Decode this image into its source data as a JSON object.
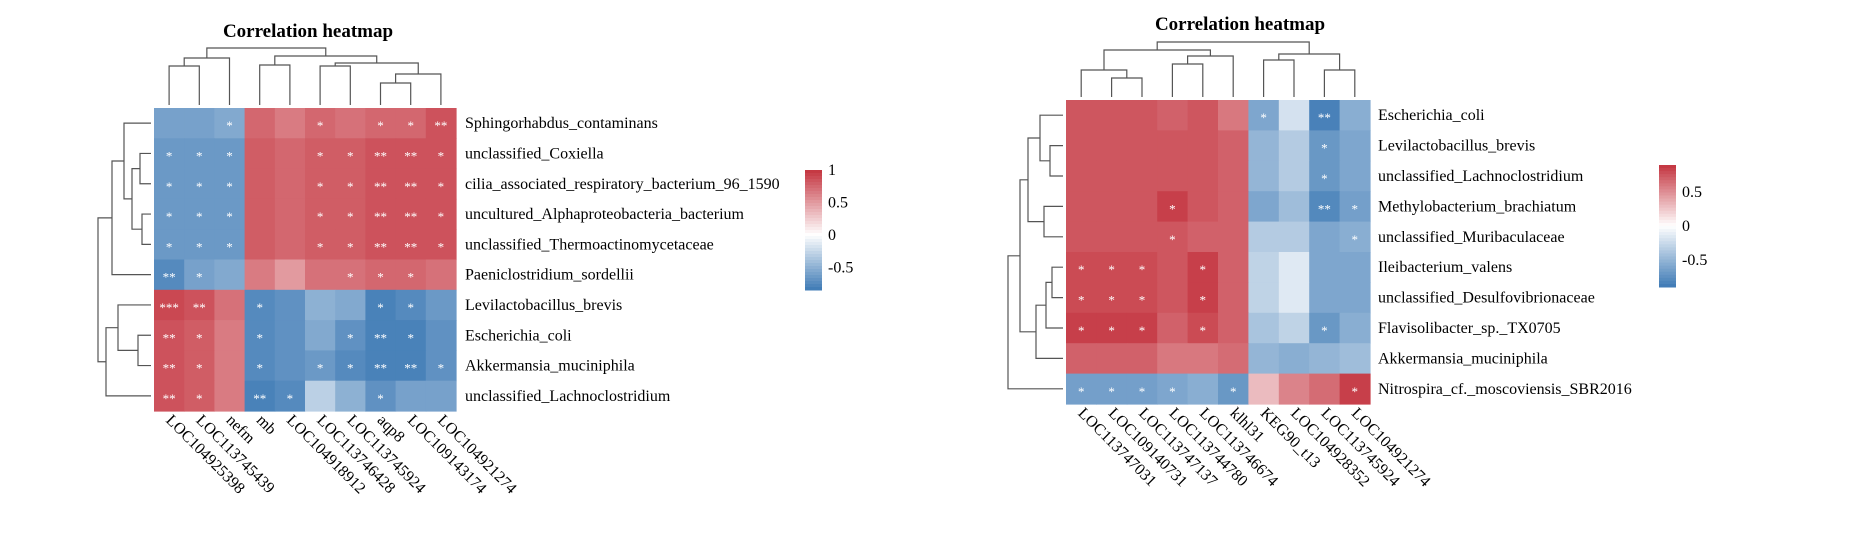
{
  "colors": {
    "neg": "#3e7ab5",
    "mid": "#ffffff",
    "pos": "#c4343f"
  },
  "chart_data": [
    {
      "type": "heatmap",
      "title": "Correlation heatmap",
      "rows": [
        "Sphingorhabdus_contaminans",
        "unclassified_Coxiella",
        "cilia_associated_respiratory_bacterium_96_1590",
        "uncultured_Alphaproteobacteria_bacterium",
        "unclassified_Thermoactinomycetaceae",
        "Paeniclostridium_sordellii",
        "Levilactobacillus_brevis",
        "Escherichia_coli",
        "Akkermansia_muciniphila",
        "unclassified_Lachnoclostridium"
      ],
      "columns": [
        "LOC104925398",
        "LOC113745439",
        "nefm",
        "mb",
        "LOC104918912",
        "LOC113746428",
        "LOC113745924",
        "aqp8",
        "LOC109143174",
        "LOC104921274"
      ],
      "values": [
        [
          -0.6,
          -0.6,
          -0.55,
          0.75,
          0.65,
          0.75,
          0.7,
          0.75,
          0.75,
          0.85
        ],
        [
          -0.65,
          -0.65,
          -0.65,
          0.8,
          0.75,
          0.8,
          0.8,
          0.85,
          0.85,
          0.85
        ],
        [
          -0.65,
          -0.65,
          -0.65,
          0.8,
          0.75,
          0.8,
          0.8,
          0.85,
          0.85,
          0.85
        ],
        [
          -0.65,
          -0.65,
          -0.65,
          0.8,
          0.75,
          0.8,
          0.8,
          0.85,
          0.85,
          0.85
        ],
        [
          -0.65,
          -0.65,
          -0.65,
          0.8,
          0.75,
          0.8,
          0.8,
          0.85,
          0.85,
          0.85
        ],
        [
          -0.75,
          -0.6,
          -0.55,
          0.65,
          0.5,
          0.7,
          0.7,
          0.75,
          0.75,
          0.7
        ],
        [
          0.9,
          0.85,
          0.7,
          -0.75,
          -0.7,
          -0.5,
          -0.55,
          -0.8,
          -0.75,
          -0.65
        ],
        [
          0.85,
          0.8,
          0.65,
          -0.75,
          -0.7,
          -0.55,
          -0.7,
          -0.8,
          -0.8,
          -0.7
        ],
        [
          0.85,
          0.8,
          0.65,
          -0.75,
          -0.7,
          -0.65,
          -0.75,
          -0.8,
          -0.8,
          -0.7
        ],
        [
          0.85,
          0.8,
          0.65,
          -0.8,
          -0.75,
          -0.3,
          -0.5,
          -0.7,
          -0.6,
          -0.6
        ]
      ],
      "stars": [
        [
          "",
          "",
          "*",
          "",
          "",
          "*",
          "",
          "*",
          "*",
          "**"
        ],
        [
          "*",
          "*",
          "*",
          "",
          "",
          "*",
          "*",
          "**",
          "**",
          "*"
        ],
        [
          "*",
          "*",
          "*",
          "",
          "",
          "*",
          "*",
          "**",
          "**",
          "*"
        ],
        [
          "*",
          "*",
          "*",
          "",
          "",
          "*",
          "*",
          "**",
          "**",
          "*"
        ],
        [
          "*",
          "*",
          "*",
          "",
          "",
          "*",
          "*",
          "**",
          "**",
          "*"
        ],
        [
          "**",
          "*",
          "",
          "",
          "",
          "",
          "*",
          "*",
          "*",
          ""
        ],
        [
          "***",
          "**",
          "",
          "*",
          "",
          "",
          "",
          "*",
          "*",
          ""
        ],
        [
          "**",
          "*",
          "",
          "*",
          "",
          "",
          "*",
          "**",
          "*",
          ""
        ],
        [
          "**",
          "*",
          "",
          "*",
          "",
          "*",
          "*",
          "**",
          "**",
          "*"
        ],
        [
          "**",
          "*",
          "",
          "**",
          "*",
          "",
          "",
          "*",
          "",
          ""
        ]
      ],
      "legend": {
        "ticks": [
          "1",
          "0.5",
          "0",
          "-0.5"
        ],
        "tick_values": [
          1,
          0.5,
          0,
          -0.5
        ],
        "range": [
          -0.85,
          1
        ]
      }
    },
    {
      "type": "heatmap",
      "title": "Correlation heatmap",
      "rows": [
        "Escherichia_coli",
        "Levilactobacillus_brevis",
        "unclassified_Lachnoclostridium",
        "Methylobacterium_brachiatum",
        "unclassified_Muribaculaceae",
        "Ileibacterium_valens",
        "unclassified_Desulfovibrionaceae",
        "Flavisolibacter_sp._TX0705",
        "Akkermansia_muciniphila",
        "Nitrospira_cf._moscoviensis_SBR2016"
      ],
      "columns": [
        "LOC113747031",
        "LOC109140731",
        "LOC113747137",
        "LOC113744780",
        "LOC113746674",
        "klhl31",
        "KEG90_t13",
        "LOC104928352",
        "LOC113745924",
        "LOC104921274"
      ],
      "values": [
        [
          0.75,
          0.75,
          0.75,
          0.7,
          0.75,
          0.6,
          -0.6,
          -0.2,
          -0.85,
          -0.55
        ],
        [
          0.75,
          0.75,
          0.75,
          0.75,
          0.75,
          0.7,
          -0.5,
          -0.35,
          -0.7,
          -0.6
        ],
        [
          0.75,
          0.75,
          0.75,
          0.75,
          0.75,
          0.7,
          -0.5,
          -0.35,
          -0.7,
          -0.6
        ],
        [
          0.75,
          0.75,
          0.75,
          0.85,
          0.75,
          0.7,
          -0.6,
          -0.45,
          -0.8,
          -0.65
        ],
        [
          0.75,
          0.75,
          0.75,
          0.75,
          0.7,
          0.7,
          -0.35,
          -0.35,
          -0.6,
          -0.55
        ],
        [
          0.8,
          0.8,
          0.8,
          0.75,
          0.85,
          0.7,
          -0.3,
          -0.15,
          -0.6,
          -0.6
        ],
        [
          0.8,
          0.8,
          0.8,
          0.75,
          0.85,
          0.7,
          -0.3,
          -0.15,
          -0.6,
          -0.6
        ],
        [
          0.85,
          0.85,
          0.85,
          0.7,
          0.8,
          0.7,
          -0.4,
          -0.3,
          -0.7,
          -0.55
        ],
        [
          0.7,
          0.7,
          0.7,
          0.6,
          0.6,
          0.65,
          -0.5,
          -0.55,
          -0.5,
          -0.45
        ],
        [
          -0.65,
          -0.65,
          -0.65,
          -0.6,
          -0.55,
          -0.7,
          0.3,
          0.55,
          0.65,
          0.85
        ]
      ],
      "stars": [
        [
          "",
          "",
          "",
          "",
          "",
          "",
          "*",
          "",
          "**",
          ""
        ],
        [
          "",
          "",
          "",
          "",
          "",
          "",
          "",
          "",
          "*",
          ""
        ],
        [
          "",
          "",
          "",
          "",
          "",
          "",
          "",
          "",
          "*",
          ""
        ],
        [
          "",
          "",
          "",
          "*",
          "",
          "",
          "",
          "",
          "**",
          "*"
        ],
        [
          "",
          "",
          "",
          "*",
          "",
          "",
          "",
          "",
          "",
          "*"
        ],
        [
          "*",
          "*",
          "*",
          "",
          "*",
          "",
          "",
          "",
          "",
          ""
        ],
        [
          "*",
          "*",
          "*",
          "",
          "*",
          "",
          "",
          "",
          "",
          ""
        ],
        [
          "*",
          "*",
          "*",
          "",
          "*",
          "",
          "",
          "",
          "*",
          ""
        ],
        [
          "",
          "",
          "",
          "",
          "",
          "",
          "",
          "",
          "",
          ""
        ],
        [
          "*",
          "*",
          "*",
          "*",
          "",
          "*",
          "",
          "",
          "",
          "*"
        ]
      ],
      "legend": {
        "ticks": [
          "0.5",
          "0",
          "-0.5"
        ],
        "tick_values": [
          0.5,
          0,
          -0.5
        ],
        "range": [
          -0.9,
          0.9
        ]
      }
    }
  ]
}
